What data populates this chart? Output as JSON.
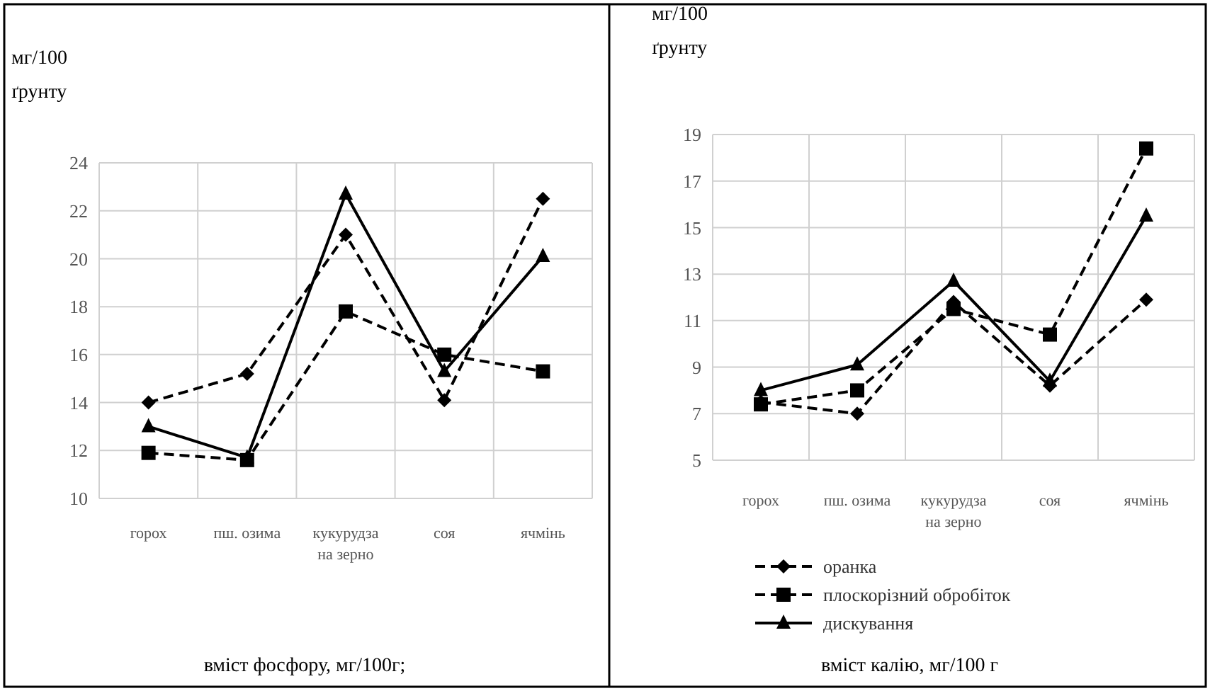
{
  "chart_data": [
    {
      "type": "line",
      "ylabel": "мг/100 ґрунту",
      "categories": [
        "горох",
        "пш. озима",
        "кукурудза на зерно",
        "соя",
        "ячмінь"
      ],
      "ylim": [
        10,
        24
      ],
      "yticks": [
        10,
        12,
        14,
        16,
        18,
        20,
        22,
        24
      ],
      "grid": true,
      "legend": false,
      "annotations": [
        "вміст фосфору, мг/100г;"
      ],
      "series": [
        {
          "color": "#000000",
          "marker": "diamond",
          "line_style": "dashed",
          "values": [
            14,
            15.2,
            21,
            14.1,
            22.5
          ]
        },
        {
          "color": "#000000",
          "marker": "square",
          "line_style": "dashed",
          "values": [
            11.9,
            11.6,
            17.8,
            16,
            15.3
          ]
        },
        {
          "color": "#000000",
          "marker": "triangle",
          "line_style": "solid",
          "values": [
            13,
            11.7,
            22.7,
            15.3,
            20.1
          ]
        }
      ]
    },
    {
      "type": "line",
      "ylabel": "мг/100 ґрунту",
      "categories": [
        "горох",
        "пш. озима",
        "кукурудза на зерно",
        "соя",
        "ячмінь"
      ],
      "ylim": [
        5,
        19
      ],
      "yticks": [
        5,
        7,
        9,
        11,
        13,
        15,
        17,
        19
      ],
      "grid": true,
      "legend": "bottom",
      "annotations": [
        "вміст калію, мг/100 г"
      ],
      "series": [
        {
          "name": "оранка",
          "color": "#000000",
          "marker": "diamond",
          "line_style": "dashed",
          "values": [
            7.5,
            7,
            11.8,
            8.2,
            11.9
          ]
        },
        {
          "name": "плоскорізний обробіток",
          "color": "#000000",
          "marker": "square",
          "line_style": "dashed",
          "values": [
            7.4,
            8,
            11.5,
            10.4,
            18.4
          ]
        },
        {
          "name": "дискування",
          "color": "#000000",
          "marker": "triangle",
          "line_style": "solid",
          "values": [
            8,
            9.1,
            12.7,
            8.4,
            15.5
          ]
        }
      ]
    }
  ]
}
